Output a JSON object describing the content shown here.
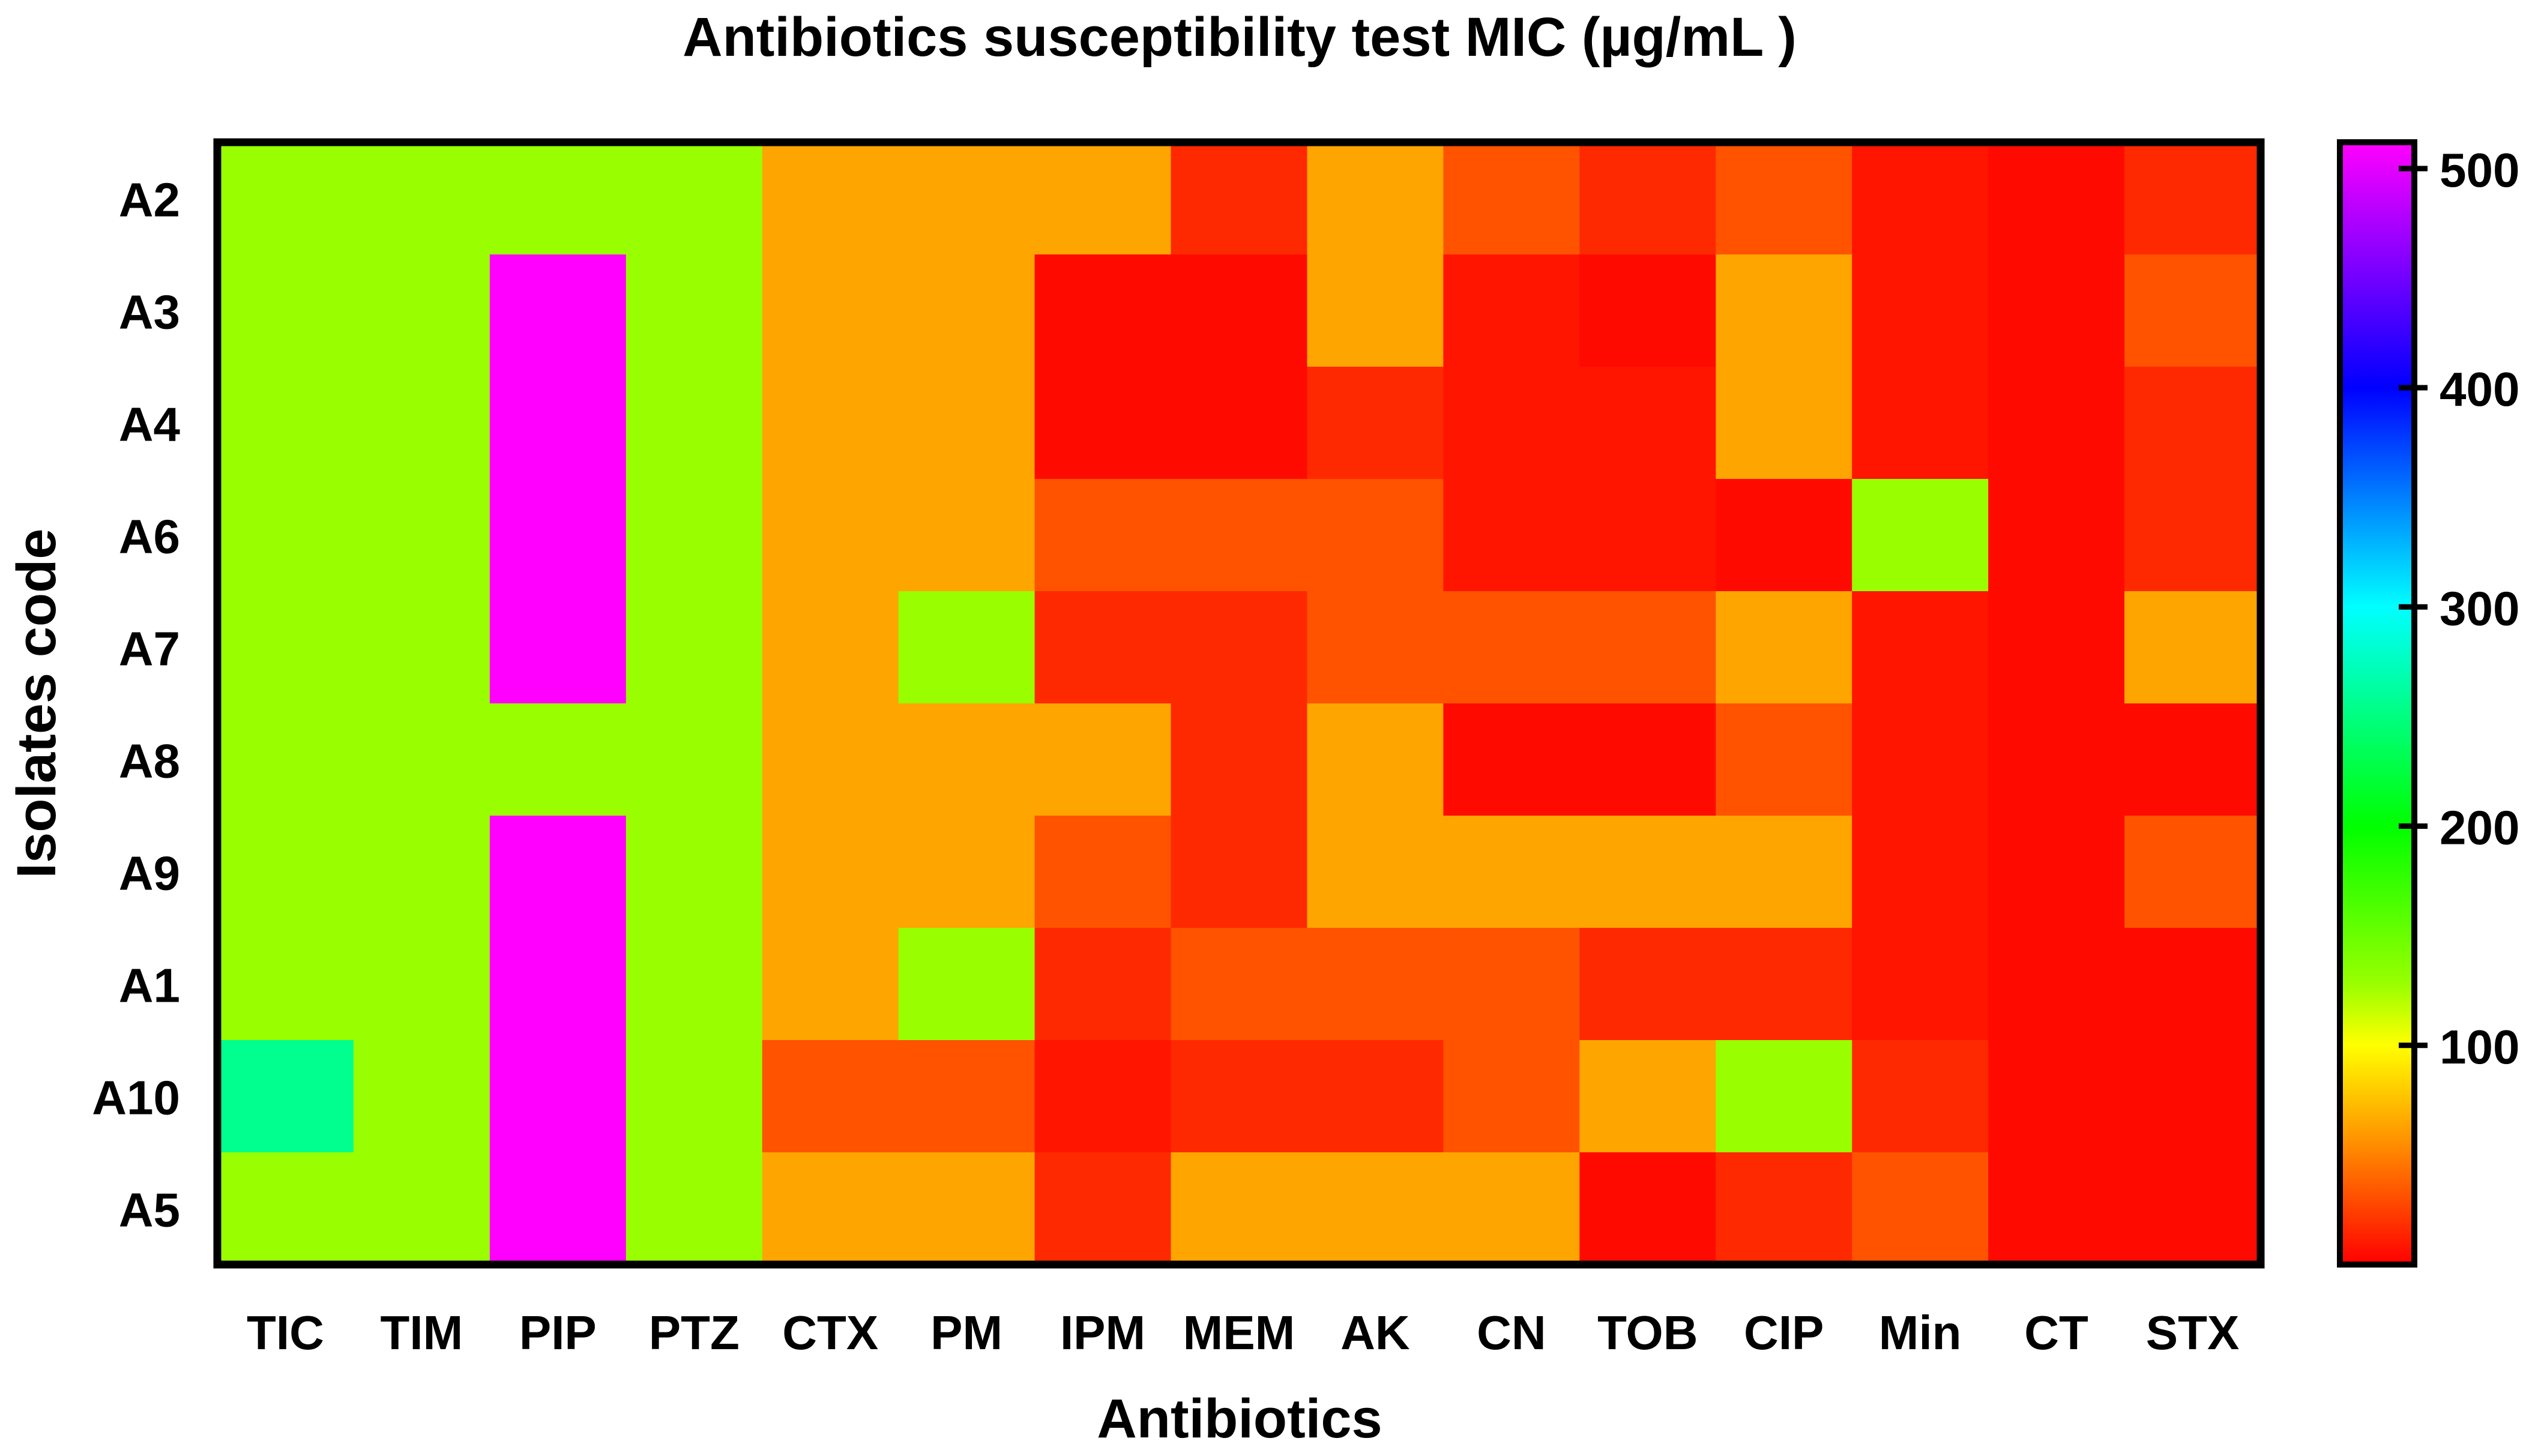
{
  "chart_data": {
    "type": "heatmap",
    "title": "Antibiotics susceptibility test  MIC (µg/mL )",
    "xlabel": "Antibiotics",
    "ylabel": "Isolates code",
    "columns": [
      "TIC",
      "TIM",
      "PIP",
      "PTZ",
      "CTX",
      "PM",
      "IPM",
      "MEM",
      "AK",
      "CN",
      "TOB",
      "CIP",
      "Min",
      "CT",
      "STX"
    ],
    "rows": [
      "A2",
      "A3",
      "A4",
      "A6",
      "A7",
      "A8",
      "A9",
      "A1",
      "A10",
      "A5"
    ],
    "values": [
      [
        128,
        128,
        128,
        128,
        64,
        64,
        64,
        16,
        64,
        32,
        16,
        32,
        8,
        4,
        16
      ],
      [
        128,
        128,
        512,
        128,
        64,
        64,
        4,
        4,
        64,
        8,
        4,
        64,
        8,
        4,
        32
      ],
      [
        128,
        128,
        512,
        128,
        64,
        64,
        4,
        4,
        16,
        8,
        8,
        64,
        8,
        4,
        16
      ],
      [
        128,
        128,
        512,
        128,
        64,
        64,
        32,
        32,
        32,
        8,
        8,
        4,
        128,
        4,
        16
      ],
      [
        128,
        128,
        512,
        128,
        64,
        128,
        16,
        16,
        32,
        32,
        32,
        64,
        8,
        4,
        64
      ],
      [
        128,
        128,
        128,
        128,
        64,
        64,
        64,
        16,
        64,
        4,
        4,
        32,
        8,
        4,
        4
      ],
      [
        128,
        128,
        512,
        128,
        64,
        64,
        32,
        16,
        64,
        64,
        64,
        64,
        8,
        4,
        32
      ],
      [
        128,
        128,
        512,
        128,
        64,
        128,
        16,
        32,
        32,
        32,
        16,
        16,
        8,
        4,
        4
      ],
      [
        256,
        128,
        512,
        128,
        32,
        32,
        8,
        16,
        16,
        32,
        64,
        128,
        16,
        4,
        4
      ],
      [
        128,
        128,
        512,
        128,
        64,
        64,
        16,
        64,
        64,
        64,
        4,
        16,
        32,
        4,
        4
      ]
    ],
    "colorbar": {
      "range": [
        0,
        512
      ],
      "ticks": [
        100,
        200,
        300,
        400,
        500
      ],
      "tick_labels": [
        "100",
        "200",
        "300",
        "400",
        "500"
      ],
      "stops": [
        {
          "value": 0,
          "color": "#ff0000"
        },
        {
          "value": 64,
          "color": "#ffa500"
        },
        {
          "value": 100,
          "color": "#ffff00"
        },
        {
          "value": 128,
          "color": "#99ff00"
        },
        {
          "value": 200,
          "color": "#00ff00"
        },
        {
          "value": 300,
          "color": "#00ffff"
        },
        {
          "value": 400,
          "color": "#0000ff"
        },
        {
          "value": 512,
          "color": "#ff00ff"
        }
      ]
    }
  }
}
